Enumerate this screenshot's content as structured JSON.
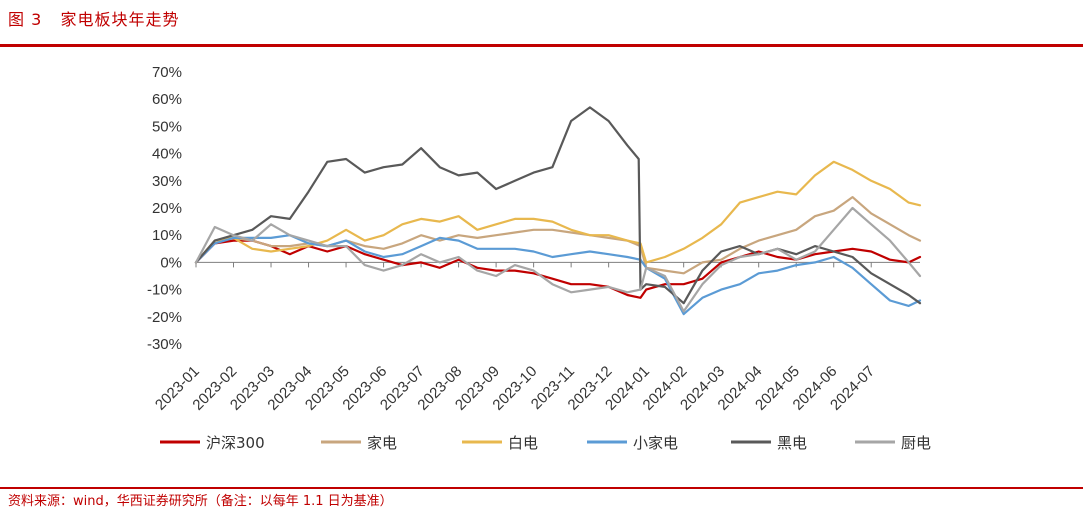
{
  "header": {
    "figure_title": "图 3   家电板块年走势"
  },
  "footer": {
    "source": "资料来源：wind，华西证券研究所（备注：以每年 1.1 日为基准）"
  },
  "chart_data": {
    "type": "line",
    "ylim": [
      -30,
      70
    ],
    "yticks": [
      -30,
      -20,
      -10,
      0,
      10,
      20,
      30,
      40,
      50,
      60,
      70
    ],
    "ytick_labels": [
      "-30%",
      "-20%",
      "-10%",
      "0%",
      "10%",
      "20%",
      "30%",
      "40%",
      "50%",
      "60%",
      "70%"
    ],
    "xlim": [
      0,
      19.3
    ],
    "xticks": [
      0,
      1,
      2,
      3,
      4,
      5,
      6,
      7,
      8,
      9,
      10,
      11,
      12,
      13,
      14,
      15,
      16,
      17,
      18
    ],
    "xtick_labels": [
      "2023-01",
      "2023-02",
      "2023-03",
      "2023-04",
      "2023-05",
      "2023-06",
      "2023-07",
      "2023-08",
      "2023-09",
      "2023-10",
      "2023-11",
      "2023-12",
      "2024-01",
      "2024-02",
      "2024-03",
      "2024-04",
      "2024-05",
      "2024-06",
      "2024-07"
    ],
    "grid": false,
    "legend_position": "bottom",
    "series": [
      {
        "name": "沪深300",
        "color": "#c00000",
        "x": [
          0,
          0.5,
          1,
          1.5,
          2,
          2.5,
          3,
          3.5,
          4,
          4.5,
          5,
          5.5,
          6,
          6.5,
          7,
          7.5,
          8,
          8.5,
          9,
          9.5,
          10,
          10.5,
          11,
          11.5,
          11.85,
          12,
          12.5,
          13,
          13.5,
          14,
          14.5,
          15,
          15.5,
          16,
          16.5,
          17,
          17.5,
          18,
          18.5,
          19,
          19.3
        ],
        "y": [
          0,
          7,
          8,
          8,
          6,
          3,
          6,
          4,
          6,
          3,
          1,
          -1,
          0,
          -2,
          1,
          -2,
          -3,
          -3,
          -4,
          -6,
          -8,
          -8,
          -9,
          -12,
          -13,
          -10,
          -8,
          -8,
          -6,
          0,
          2,
          4,
          2,
          1,
          3,
          4,
          5,
          4,
          1,
          0,
          2
        ]
      },
      {
        "name": "家电",
        "color": "#c8a67e",
        "x": [
          0,
          0.5,
          1,
          1.5,
          2,
          2.5,
          3,
          3.5,
          4,
          4.5,
          5,
          5.5,
          6,
          6.5,
          7,
          7.5,
          8,
          8.5,
          9,
          9.5,
          10,
          10.5,
          11,
          11.5,
          11.85,
          12,
          12.5,
          13,
          13.5,
          14,
          14.5,
          15,
          15.5,
          16,
          16.5,
          17,
          17.5,
          18,
          18.5,
          19,
          19.3
        ],
        "y": [
          0,
          8,
          9,
          8,
          6,
          6,
          7,
          6,
          8,
          6,
          5,
          7,
          10,
          8,
          10,
          9,
          10,
          11,
          12,
          12,
          11,
          10,
          9,
          8,
          6,
          -2,
          -3,
          -4,
          0,
          1,
          5,
          8,
          10,
          12,
          17,
          19,
          24,
          18,
          14,
          10,
          8
        ]
      },
      {
        "name": "白电",
        "color": "#e8b84e",
        "x": [
          0,
          0.5,
          1,
          1.5,
          2,
          2.5,
          3,
          3.5,
          4,
          4.5,
          5,
          5.5,
          6,
          6.5,
          7,
          7.5,
          8,
          8.5,
          9,
          9.5,
          10,
          10.5,
          11,
          11.5,
          11.85,
          12,
          12.5,
          13,
          13.5,
          14,
          14.5,
          15,
          15.5,
          16,
          16.5,
          17,
          17.5,
          18,
          18.5,
          19,
          19.3
        ],
        "y": [
          0,
          8,
          9,
          5,
          4,
          5,
          6,
          8,
          12,
          8,
          10,
          14,
          16,
          15,
          17,
          12,
          14,
          16,
          16,
          15,
          12,
          10,
          10,
          8,
          7,
          0,
          2,
          5,
          9,
          14,
          22,
          24,
          26,
          25,
          32,
          37,
          34,
          30,
          27,
          22,
          21
        ]
      },
      {
        "name": "小家电",
        "color": "#5b9bd5",
        "x": [
          0,
          0.5,
          1,
          1.5,
          2,
          2.5,
          3,
          3.5,
          4,
          4.5,
          5,
          5.5,
          6,
          6.5,
          7,
          7.5,
          8,
          8.5,
          9,
          9.5,
          10,
          10.5,
          11,
          11.5,
          11.85,
          12,
          12.5,
          13,
          13.5,
          14,
          14.5,
          15,
          15.5,
          16,
          16.5,
          17,
          17.5,
          18,
          18.5,
          19,
          19.3
        ],
        "y": [
          0,
          7,
          9,
          9,
          9,
          10,
          7,
          6,
          8,
          4,
          2,
          3,
          6,
          9,
          8,
          5,
          5,
          5,
          4,
          2,
          3,
          4,
          3,
          2,
          1,
          -2,
          -6,
          -19,
          -13,
          -10,
          -8,
          -4,
          -3,
          -1,
          0,
          2,
          -2,
          -8,
          -14,
          -16,
          -14
        ]
      },
      {
        "name": "黑电",
        "color": "#595959",
        "x": [
          0,
          0.5,
          1,
          1.5,
          2,
          2.5,
          3,
          3.5,
          4,
          4.5,
          5,
          5.5,
          6,
          6.5,
          7,
          7.5,
          8,
          8.5,
          9,
          9.5,
          10,
          10.5,
          11,
          11.5,
          11.8,
          11.85,
          12,
          12.5,
          13,
          13.5,
          14,
          14.5,
          15,
          15.5,
          16,
          16.5,
          17,
          17.5,
          18,
          18.5,
          19,
          19.3
        ],
        "y": [
          0,
          8,
          10,
          12,
          17,
          16,
          26,
          37,
          38,
          33,
          35,
          36,
          42,
          35,
          32,
          33,
          27,
          30,
          33,
          35,
          52,
          57,
          52,
          43,
          38,
          -10,
          -8,
          -9,
          -15,
          -3,
          4,
          6,
          3,
          5,
          3,
          6,
          4,
          2,
          -4,
          -8,
          -12,
          -15
        ]
      },
      {
        "name": "厨电",
        "color": "#a6a6a6",
        "x": [
          0,
          0.5,
          1,
          1.5,
          2,
          2.5,
          3,
          3.5,
          4,
          4.5,
          5,
          5.5,
          6,
          6.5,
          7,
          7.5,
          8,
          8.5,
          9,
          9.5,
          10,
          10.5,
          11,
          11.5,
          11.85,
          12,
          12.5,
          13,
          13.5,
          14,
          14.5,
          15,
          15.5,
          16,
          16.5,
          17,
          17.5,
          18,
          18.5,
          19,
          19.3
        ],
        "y": [
          0,
          13,
          10,
          8,
          14,
          10,
          8,
          6,
          6,
          -1,
          -3,
          -1,
          3,
          0,
          2,
          -3,
          -5,
          -1,
          -3,
          -8,
          -11,
          -10,
          -9,
          -11,
          -10,
          -2,
          -5,
          -18,
          -8,
          -1,
          2,
          3,
          5,
          1,
          4,
          12,
          20,
          14,
          8,
          0,
          -5
        ]
      }
    ]
  }
}
